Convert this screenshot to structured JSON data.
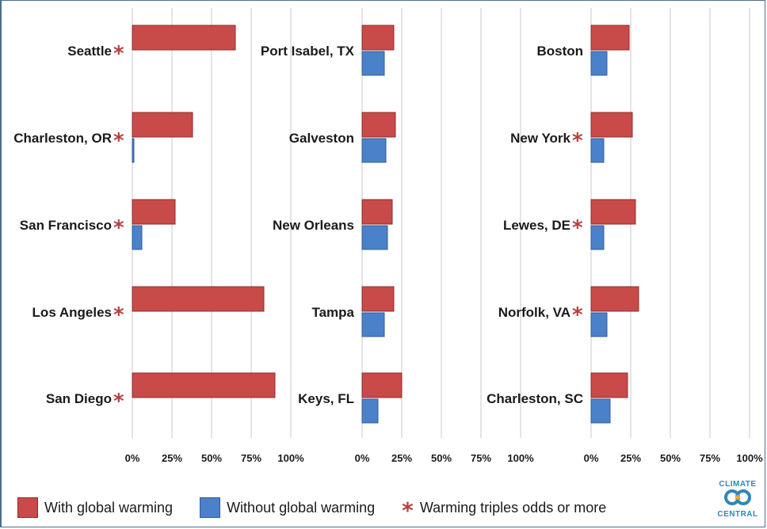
{
  "colors": {
    "with": "#c84a49",
    "without": "#4b81c9",
    "star": "#b5413f",
    "grid": "#c8c8c8"
  },
  "chart_data": {
    "type": "bar",
    "orientation": "horizontal",
    "x_tick_labels": [
      "0%",
      "25%",
      "50%",
      "75%",
      "100%"
    ],
    "xlim": [
      0,
      100
    ],
    "grid": true,
    "series_names": [
      "With global warming",
      "Without global warming"
    ],
    "panels": [
      {
        "categories": [
          "Seattle",
          "Charleston, OR",
          "San Francisco",
          "Los Angeles",
          "San Diego"
        ],
        "with": [
          65,
          38,
          27,
          83,
          90
        ],
        "without": [
          0,
          1,
          6,
          0,
          0
        ],
        "triples": [
          true,
          true,
          true,
          true,
          true
        ]
      },
      {
        "categories": [
          "Port Isabel, TX",
          "Galveston",
          "New Orleans",
          "Tampa",
          "Keys, FL"
        ],
        "with": [
          20,
          21,
          19,
          20,
          25
        ],
        "without": [
          14,
          15,
          16,
          14,
          10
        ],
        "triples": [
          false,
          false,
          false,
          false,
          false
        ]
      },
      {
        "categories": [
          "Boston",
          "New York",
          "Lewes, DE",
          "Norfolk, VA",
          "Charleston, SC"
        ],
        "with": [
          24,
          26,
          28,
          30,
          23
        ],
        "without": [
          10,
          8,
          8,
          10,
          12
        ],
        "triples": [
          false,
          true,
          true,
          true,
          false
        ]
      }
    ]
  },
  "legend": {
    "with_label": "With global warming",
    "without_label": "Without global warming",
    "star_label": "Warming triples odds or more",
    "star_glyph": "*"
  },
  "logo": {
    "line1": "CLIMATE",
    "line2": "CENTRAL"
  }
}
